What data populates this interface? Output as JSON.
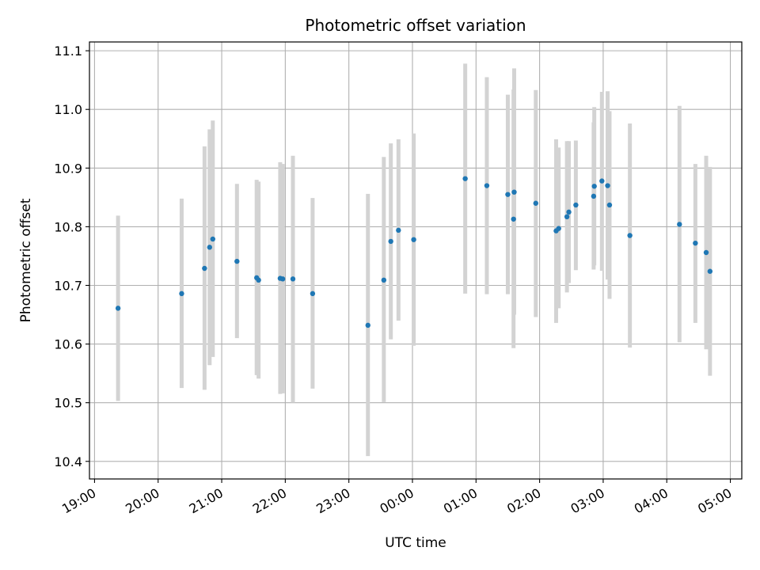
{
  "chart_data": {
    "type": "scatter",
    "title": "Photometric offset variation",
    "xlabel": "UTC time",
    "ylabel": "Photometric offset",
    "grid": true,
    "x_unit": "hours since 19:00 UTC",
    "xlim": [
      -0.08,
      10.18
    ],
    "ylim": [
      10.37,
      11.115
    ],
    "x_ticks": [
      0,
      1,
      2,
      3,
      4,
      5,
      6,
      7,
      8,
      9,
      10
    ],
    "x_tick_labels": [
      "19:00",
      "20:00",
      "21:00",
      "22:00",
      "23:00",
      "00:00",
      "01:00",
      "02:00",
      "03:00",
      "04:00",
      "05:00"
    ],
    "y_ticks": [
      10.4,
      10.5,
      10.6,
      10.7,
      10.8,
      10.9,
      11.0,
      11.1
    ],
    "y_tick_labels": [
      "10.4",
      "10.5",
      "10.6",
      "10.7",
      "10.8",
      "10.9",
      "11.0",
      "11.1"
    ],
    "colors": {
      "point": "#1f77b4",
      "errorbar": "#d3d3d3",
      "grid": "#b0b0b0"
    },
    "points": [
      {
        "x": 0.37,
        "y": 10.661,
        "lo": 10.503,
        "hi": 10.819
      },
      {
        "x": 1.37,
        "y": 10.686,
        "lo": 10.525,
        "hi": 10.848
      },
      {
        "x": 1.73,
        "y": 10.729,
        "lo": 10.522,
        "hi": 10.937
      },
      {
        "x": 1.81,
        "y": 10.765,
        "lo": 10.564,
        "hi": 10.966
      },
      {
        "x": 1.86,
        "y": 10.779,
        "lo": 10.578,
        "hi": 10.981
      },
      {
        "x": 2.24,
        "y": 10.741,
        "lo": 10.61,
        "hi": 10.873
      },
      {
        "x": 2.55,
        "y": 10.713,
        "lo": 10.547,
        "hi": 10.88
      },
      {
        "x": 2.58,
        "y": 10.709,
        "lo": 10.541,
        "hi": 10.877
      },
      {
        "x": 2.92,
        "y": 10.712,
        "lo": 10.515,
        "hi": 10.91
      },
      {
        "x": 2.96,
        "y": 10.711,
        "lo": 10.516,
        "hi": 10.907
      },
      {
        "x": 3.12,
        "y": 10.711,
        "lo": 10.5,
        "hi": 10.921
      },
      {
        "x": 3.43,
        "y": 10.686,
        "lo": 10.524,
        "hi": 10.849
      },
      {
        "x": 4.3,
        "y": 10.632,
        "lo": 10.409,
        "hi": 10.856
      },
      {
        "x": 4.55,
        "y": 10.709,
        "lo": 10.501,
        "hi": 10.919
      },
      {
        "x": 4.66,
        "y": 10.775,
        "lo": 10.608,
        "hi": 10.942
      },
      {
        "x": 4.78,
        "y": 10.794,
        "lo": 10.64,
        "hi": 10.949
      },
      {
        "x": 5.02,
        "y": 10.778,
        "lo": 10.597,
        "hi": 10.959
      },
      {
        "x": 5.83,
        "y": 10.882,
        "lo": 10.686,
        "hi": 11.078
      },
      {
        "x": 6.17,
        "y": 10.87,
        "lo": 10.685,
        "hi": 11.055
      },
      {
        "x": 6.5,
        "y": 10.855,
        "lo": 10.685,
        "hi": 11.025
      },
      {
        "x": 6.59,
        "y": 10.813,
        "lo": 10.593,
        "hi": 11.034
      },
      {
        "x": 6.6,
        "y": 10.859,
        "lo": 10.65,
        "hi": 11.07
      },
      {
        "x": 6.94,
        "y": 10.84,
        "lo": 10.646,
        "hi": 11.033
      },
      {
        "x": 7.26,
        "y": 10.793,
        "lo": 10.636,
        "hi": 10.949
      },
      {
        "x": 7.3,
        "y": 10.797,
        "lo": 10.661,
        "hi": 10.935
      },
      {
        "x": 7.43,
        "y": 10.817,
        "lo": 10.688,
        "hi": 10.946
      },
      {
        "x": 7.46,
        "y": 10.825,
        "lo": 10.704,
        "hi": 10.946
      },
      {
        "x": 7.57,
        "y": 10.837,
        "lo": 10.726,
        "hi": 10.947
      },
      {
        "x": 7.85,
        "y": 10.852,
        "lo": 10.727,
        "hi": 10.978
      },
      {
        "x": 7.86,
        "y": 10.869,
        "lo": 10.734,
        "hi": 11.004
      },
      {
        "x": 7.98,
        "y": 10.878,
        "lo": 10.725,
        "hi": 11.03
      },
      {
        "x": 8.07,
        "y": 10.87,
        "lo": 10.71,
        "hi": 11.031
      },
      {
        "x": 8.1,
        "y": 10.837,
        "lo": 10.677,
        "hi": 10.997
      },
      {
        "x": 8.42,
        "y": 10.785,
        "lo": 10.594,
        "hi": 10.976
      },
      {
        "x": 9.2,
        "y": 10.804,
        "lo": 10.603,
        "hi": 11.006
      },
      {
        "x": 9.45,
        "y": 10.772,
        "lo": 10.636,
        "hi": 10.907
      },
      {
        "x": 9.62,
        "y": 10.756,
        "lo": 10.591,
        "hi": 10.921
      },
      {
        "x": 9.68,
        "y": 10.724,
        "lo": 10.546,
        "hi": 10.902
      }
    ]
  }
}
